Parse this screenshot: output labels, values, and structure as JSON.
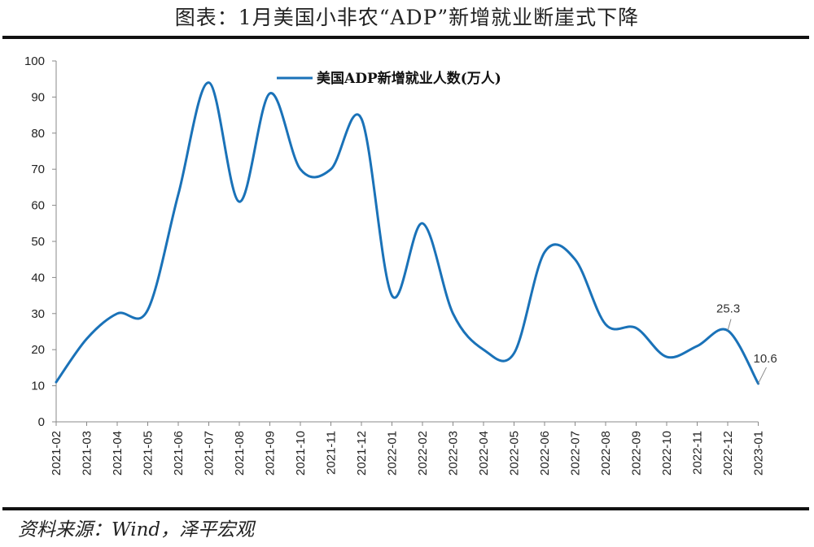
{
  "figure": {
    "title": "图表：1月美国小非农“ADP”新增就业断崖式下降",
    "source": "资料来源：Wind，泽平宏观"
  },
  "colors": {
    "series": "#1a72b8",
    "axis": "#888888",
    "text": "#222222"
  },
  "chart_data": {
    "type": "line",
    "categories": [
      "2021-02",
      "2021-03",
      "2021-04",
      "2021-05",
      "2021-06",
      "2021-07",
      "2021-08",
      "2021-09",
      "2021-10",
      "2021-11",
      "2021-12",
      "2022-01",
      "2022-02",
      "2022-03",
      "2022-04",
      "2022-05",
      "2022-06",
      "2022-07",
      "2022-08",
      "2022-09",
      "2022-10",
      "2022-11",
      "2022-12",
      "2023-01"
    ],
    "series": [
      {
        "name": "美国ADP新增就业人数(万人)",
        "values": [
          11,
          23,
          30,
          31,
          63,
          94,
          61,
          91,
          70,
          70,
          84,
          35,
          55,
          30,
          20,
          19,
          47,
          45,
          27,
          26,
          18,
          21,
          25.3,
          10.6
        ]
      }
    ],
    "ylim": [
      0,
      100
    ],
    "yticks": [
      0,
      10,
      20,
      30,
      40,
      50,
      60,
      70,
      80,
      90,
      100
    ],
    "annotations": [
      {
        "category": "2022-12",
        "value": 25.3,
        "text": "25.3"
      },
      {
        "category": "2023-01",
        "value": 10.6,
        "text": "10.6"
      }
    ],
    "legend_position": "top-center",
    "grid": false,
    "smooth": true
  }
}
